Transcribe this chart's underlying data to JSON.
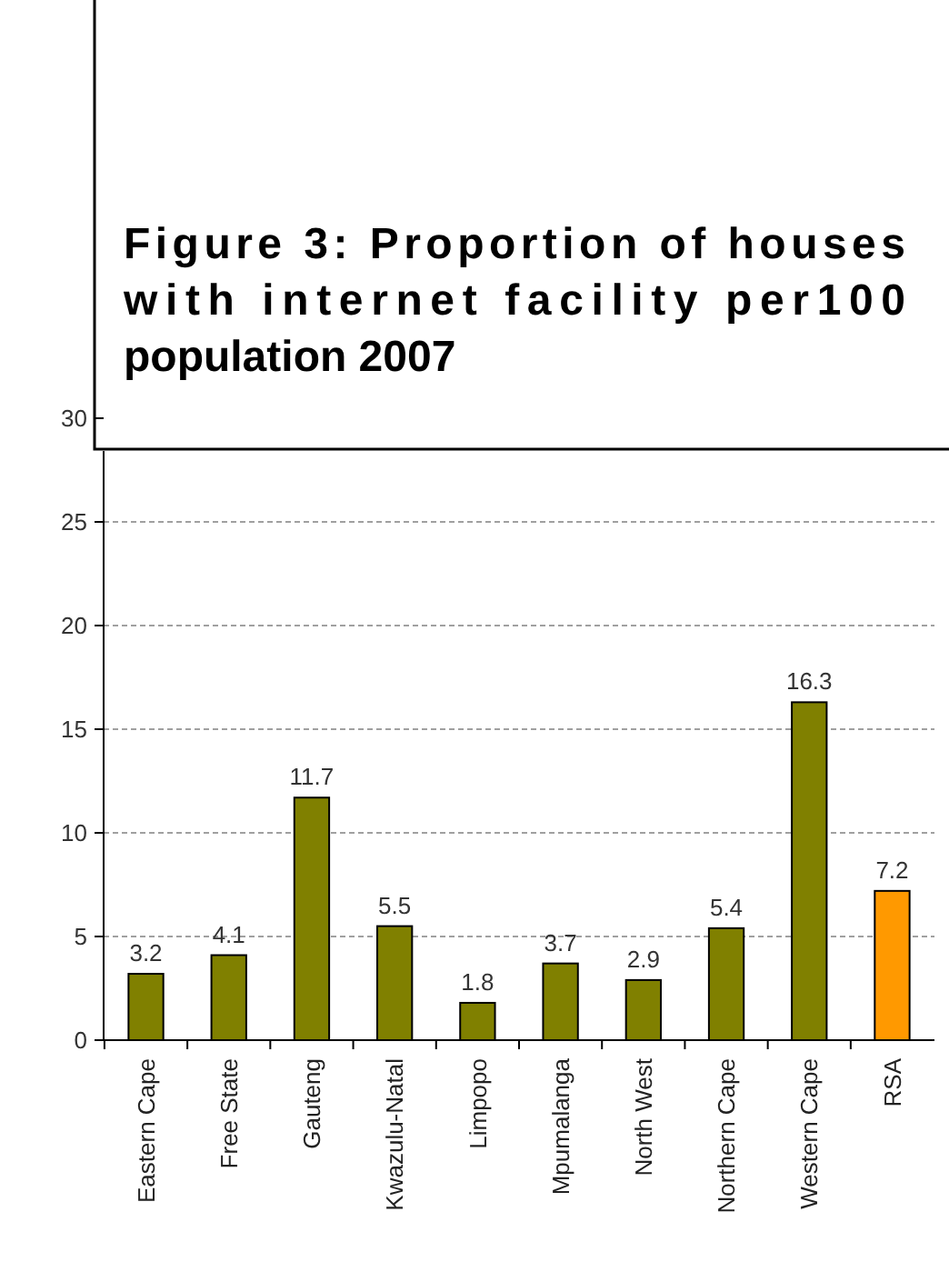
{
  "chart_data": {
    "type": "bar",
    "title": "Figure 3: Proportion of houses with internet facility per100 population 2007",
    "categories": [
      "Eastern Cape",
      "Free State",
      "Gauteng",
      "Kwazulu-Natal",
      "Limpopo",
      "Mpumalanga",
      "North West",
      "Northern Cape",
      "Western Cape",
      "RSA"
    ],
    "values": [
      3.2,
      4.1,
      11.7,
      5.5,
      1.8,
      3.7,
      2.9,
      5.4,
      16.3,
      7.2
    ],
    "colors": [
      "#808000",
      "#808000",
      "#808000",
      "#808000",
      "#808000",
      "#808000",
      "#808000",
      "#808000",
      "#808000",
      "#ff9900"
    ],
    "ylim": [
      0,
      30
    ],
    "yticks": [
      0,
      5,
      10,
      15,
      20,
      25,
      30
    ],
    "grid": "y",
    "data_labels": true
  }
}
